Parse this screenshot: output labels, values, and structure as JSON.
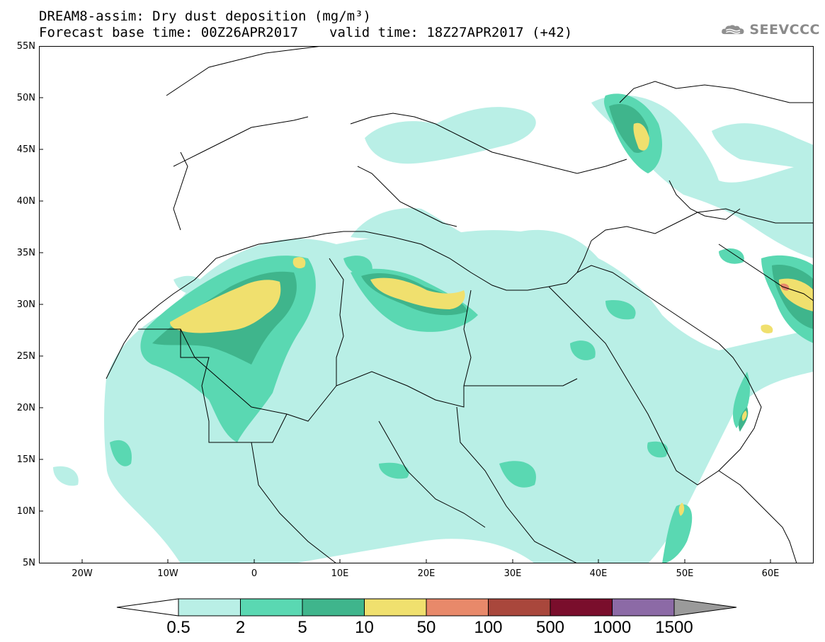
{
  "header": {
    "title_line1": "DREAM8-assim: Dry dust deposition (mg/m³)",
    "base_time": "Forecast base time: 00Z26APR2017",
    "valid_time": "valid time: 18Z27APR2017 (+42)",
    "logo_text": "SEEVCCC",
    "logo_icon": "cloud-icon"
  },
  "map": {
    "lon_range": [
      -25,
      65
    ],
    "lat_range": [
      5,
      55
    ],
    "lat_labels": [
      "55N",
      "50N",
      "45N",
      "40N",
      "35N",
      "30N",
      "25N",
      "20N",
      "15N",
      "10N",
      "5N"
    ],
    "lon_labels": [
      "20W",
      "10W",
      "0",
      "10E",
      "20E",
      "30E",
      "40E",
      "50E",
      "60E"
    ],
    "land_color": "#ffffff",
    "boundary_color": "#000000"
  },
  "colorbar": {
    "labels": [
      "0.5",
      "2",
      "5",
      "10",
      "50",
      "100",
      "500",
      "1000",
      "1500"
    ],
    "colors": [
      "#b9efe6",
      "#5ad8b2",
      "#3fb58c",
      "#f0e06e",
      "#e8896a",
      "#a9473c",
      "#7a0e2c",
      "#8c6aa6"
    ],
    "over_color": "#9a9a9a",
    "under_color": "#ffffff"
  }
}
